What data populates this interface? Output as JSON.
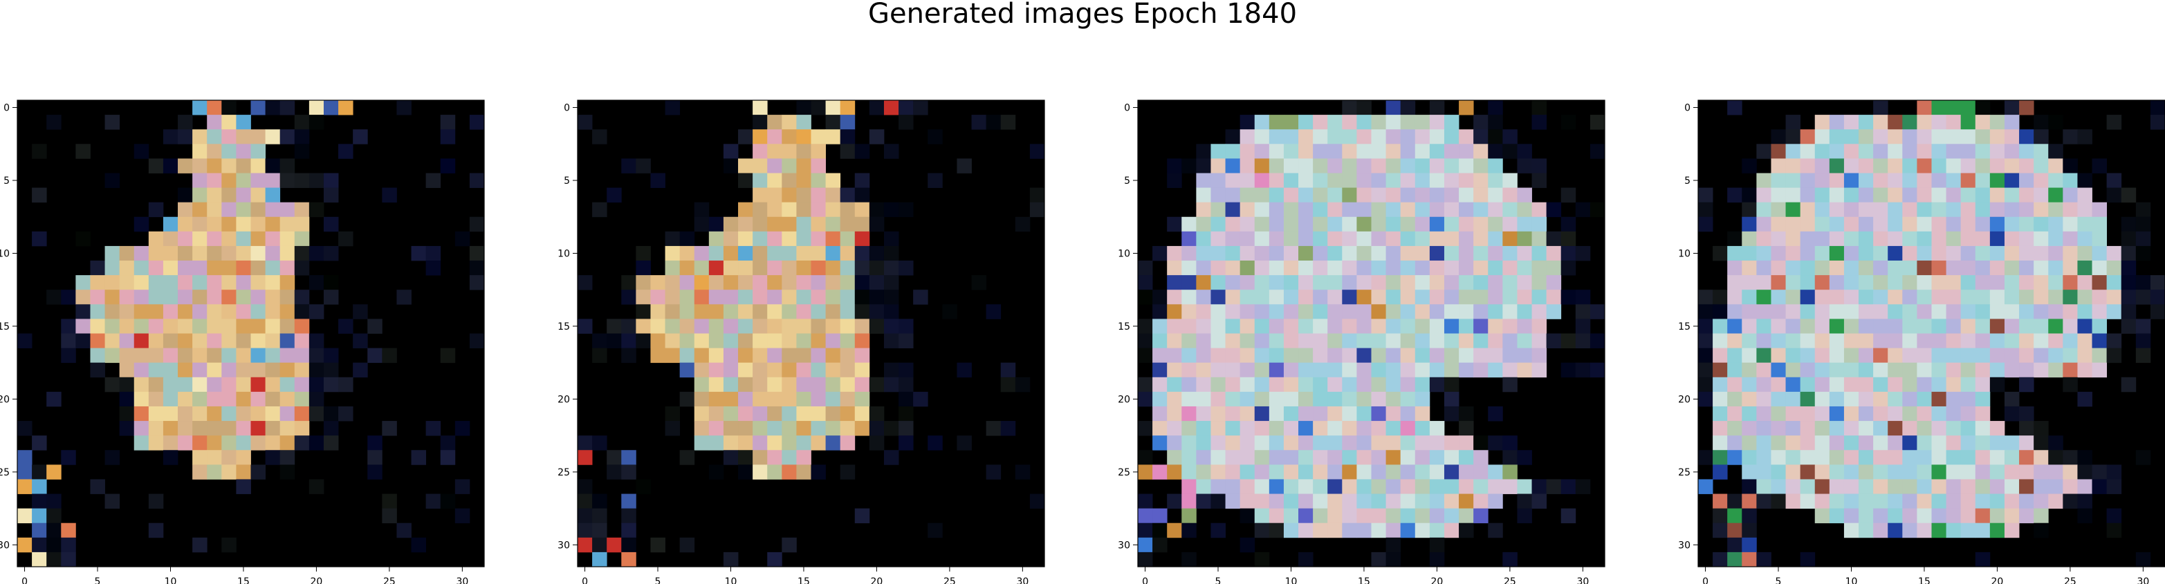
{
  "title": "Generated images Epoch 1840",
  "chart_data": [
    {
      "type": "heatmap",
      "image": "generated-image-1",
      "shape": [
        32,
        32,
        3
      ],
      "xticks": [
        0,
        5,
        10,
        15,
        20,
        25,
        30
      ],
      "yticks": [
        0,
        5,
        10,
        15,
        20,
        25,
        30
      ],
      "xlim": [
        -0.5,
        31.5
      ],
      "ylim": [
        31.5,
        -0.5
      ],
      "grid": false,
      "blob": "warm-yellow-pastel",
      "palette": [
        "#e6bf86",
        "#d9b48a",
        "#e8c98f",
        "#c9a878",
        "#b9c49a",
        "#c8a4c8",
        "#e3a8b6",
        "#9ec6c2",
        "#f0d99a",
        "#d7a25a"
      ],
      "accents": [
        "#f2e6b8",
        "#e8a64a",
        "#c9302a",
        "#e07a50",
        "#3a5aa8",
        "#5aa9d6"
      ]
    },
    {
      "type": "heatmap",
      "image": "generated-image-2",
      "shape": [
        32,
        32,
        3
      ],
      "xticks": [
        0,
        5,
        10,
        15,
        20,
        25,
        30
      ],
      "yticks": [
        0,
        5,
        10,
        15,
        20,
        25,
        30
      ],
      "xlim": [
        -0.5,
        31.5
      ],
      "ylim": [
        31.5,
        -0.5
      ],
      "grid": false,
      "blob": "warm-yellow-pastel",
      "palette": [
        "#e6bf86",
        "#d9b48a",
        "#e8c98f",
        "#c9a878",
        "#b9c49a",
        "#c8a4c8",
        "#e3a8b6",
        "#9ec6c2",
        "#f0d99a",
        "#d7a25a"
      ],
      "accents": [
        "#f2e6b8",
        "#e8a64a",
        "#c9302a",
        "#e07a50",
        "#3a5aa8",
        "#5aa9d6"
      ]
    },
    {
      "type": "heatmap",
      "image": "generated-image-3",
      "shape": [
        32,
        32,
        3
      ],
      "xticks": [
        0,
        5,
        10,
        15,
        20,
        25,
        30
      ],
      "yticks": [
        0,
        5,
        10,
        15,
        20,
        25,
        30
      ],
      "xlim": [
        -0.5,
        31.5
      ],
      "ylim": [
        31.5,
        -0.5
      ],
      "grid": false,
      "blob": "cool-cyan-pastel",
      "palette": [
        "#a9d8d6",
        "#c7b3d6",
        "#e1bcc6",
        "#9fcfe2",
        "#d9c4d8",
        "#b7cbb4",
        "#8fd0d8",
        "#e6c9b9",
        "#b3b4de",
        "#cfe3e0"
      ],
      "accents": [
        "#3a7bd5",
        "#2a3f9a",
        "#5b5fc7",
        "#e28bc0",
        "#8aa66a",
        "#c98a3a"
      ]
    },
    {
      "type": "heatmap",
      "image": "generated-image-4",
      "shape": [
        32,
        32,
        3
      ],
      "xticks": [
        0,
        5,
        10,
        15,
        20,
        25,
        30
      ],
      "yticks": [
        0,
        5,
        10,
        15,
        20,
        25,
        30
      ],
      "xlim": [
        -0.5,
        31.5
      ],
      "ylim": [
        31.5,
        -0.5
      ],
      "grid": false,
      "blob": "cool-cyan-pastel",
      "palette": [
        "#a9d8d6",
        "#c7b3d6",
        "#e1bcc6",
        "#9fcfe2",
        "#d9c4d8",
        "#b7cbb4",
        "#8fd0d8",
        "#e6c9b9",
        "#b3b4de",
        "#cfe3e0"
      ],
      "accents": [
        "#3a7bd5",
        "#1e3f9e",
        "#2f8a5a",
        "#d0705a",
        "#8b4a3a",
        "#2a9a4a"
      ]
    }
  ]
}
